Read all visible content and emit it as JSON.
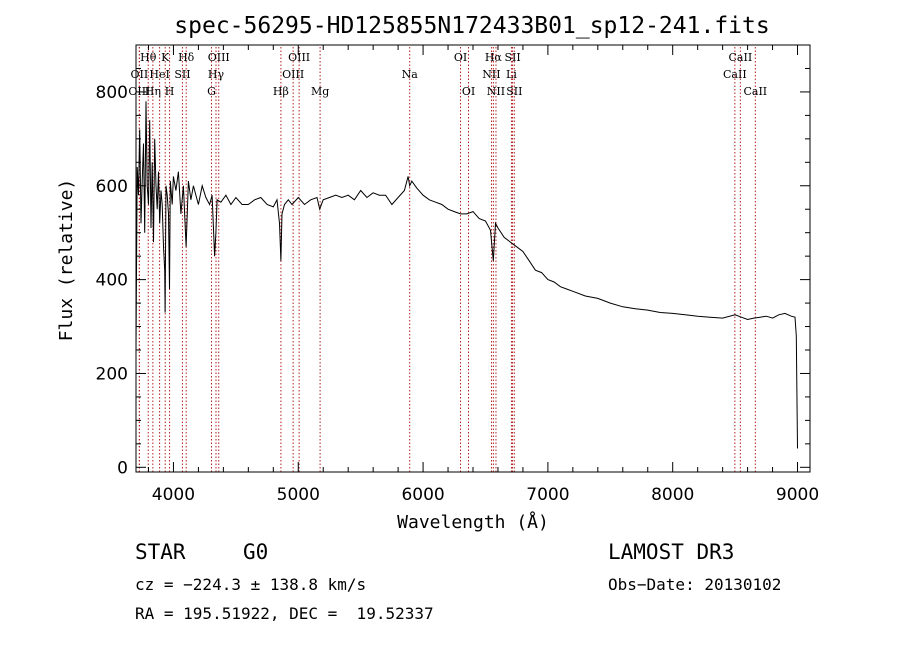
{
  "chart_data": {
    "type": "line",
    "title": "spec-56295-HD125855N172433B01_sp12-241.fits",
    "xlabel": "Wavelength (Å)",
    "ylabel": "Flux (relative)",
    "xlim": [
      3700,
      9100
    ],
    "ylim": [
      -10,
      900
    ],
    "xticks": [
      4000,
      5000,
      6000,
      7000,
      8000,
      9000
    ],
    "yticks": [
      0,
      200,
      400,
      600,
      800
    ],
    "x_minor_step": 200,
    "y_minor_step": 50,
    "grid": false,
    "series": [
      {
        "name": "spectrum",
        "x": [
          3700,
          3710,
          3720,
          3730,
          3740,
          3750,
          3760,
          3770,
          3780,
          3790,
          3800,
          3810,
          3820,
          3830,
          3840,
          3850,
          3860,
          3870,
          3880,
          3890,
          3900,
          3910,
          3920,
          3930,
          3933,
          3940,
          3950,
          3960,
          3968,
          3975,
          3990,
          4000,
          4020,
          4040,
          4060,
          4080,
          4101,
          4120,
          4140,
          4160,
          4180,
          4200,
          4230,
          4260,
          4290,
          4310,
          4330,
          4340,
          4350,
          4380,
          4420,
          4460,
          4500,
          4550,
          4600,
          4650,
          4700,
          4750,
          4800,
          4830,
          4850,
          4861,
          4870,
          4890,
          4920,
          4950,
          5000,
          5050,
          5100,
          5150,
          5172,
          5200,
          5250,
          5300,
          5350,
          5400,
          5450,
          5500,
          5550,
          5600,
          5650,
          5700,
          5750,
          5800,
          5850,
          5880,
          5893,
          5910,
          5950,
          6000,
          6050,
          6100,
          6150,
          6200,
          6250,
          6300,
          6350,
          6400,
          6450,
          6500,
          6540,
          6563,
          6580,
          6600,
          6650,
          6700,
          6750,
          6800,
          6850,
          6900,
          6950,
          7000,
          7050,
          7100,
          7150,
          7200,
          7300,
          7400,
          7500,
          7600,
          7700,
          7800,
          7900,
          8000,
          8100,
          8200,
          8300,
          8400,
          8500,
          8550,
          8600,
          8650,
          8700,
          8750,
          8800,
          8850,
          8900,
          8950,
          8980,
          8990,
          9000
        ],
        "values": [
          250,
          640,
          580,
          720,
          520,
          610,
          690,
          500,
          780,
          600,
          560,
          740,
          510,
          650,
          480,
          700,
          600,
          550,
          630,
          520,
          590,
          560,
          470,
          420,
          330,
          600,
          580,
          540,
          380,
          610,
          560,
          620,
          590,
          630,
          540,
          600,
          470,
          610,
          570,
          600,
          580,
          560,
          600,
          575,
          560,
          580,
          450,
          500,
          570,
          565,
          580,
          560,
          575,
          560,
          560,
          570,
          575,
          560,
          555,
          570,
          520,
          440,
          540,
          560,
          570,
          560,
          575,
          560,
          570,
          575,
          550,
          570,
          575,
          580,
          575,
          580,
          570,
          590,
          575,
          585,
          580,
          580,
          560,
          575,
          590,
          620,
          600,
          610,
          595,
          580,
          570,
          565,
          560,
          550,
          545,
          540,
          540,
          545,
          530,
          525,
          505,
          440,
          520,
          510,
          490,
          480,
          470,
          460,
          440,
          420,
          415,
          400,
          395,
          385,
          380,
          375,
          365,
          360,
          350,
          342,
          338,
          335,
          330,
          328,
          325,
          322,
          320,
          318,
          325,
          320,
          315,
          318,
          320,
          322,
          318,
          325,
          328,
          322,
          320,
          280,
          40
        ]
      }
    ],
    "spectral_lines": [
      {
        "label": "Hθ",
        "x": 3798,
        "row": 0
      },
      {
        "label": "K",
        "x": 3934,
        "row": 0
      },
      {
        "label": "Hδ",
        "x": 4102,
        "row": 0
      },
      {
        "label": "OIII",
        "x": 4363,
        "row": 0
      },
      {
        "label": "OIII",
        "x": 5007,
        "row": 0
      },
      {
        "label": "OI",
        "x": 6300,
        "row": 0
      },
      {
        "label": "Hα",
        "x": 6563,
        "row": 0
      },
      {
        "label": "SII",
        "x": 6717,
        "row": 0
      },
      {
        "label": "CaII",
        "x": 8542,
        "row": 0
      },
      {
        "label": "OII",
        "x": 3727,
        "row": 1
      },
      {
        "label": "HeI",
        "x": 3889,
        "row": 1
      },
      {
        "label": "SII",
        "x": 4072,
        "row": 1
      },
      {
        "label": "Hγ",
        "x": 4341,
        "row": 1
      },
      {
        "label": "OIII",
        "x": 4959,
        "row": 1
      },
      {
        "label": "Na",
        "x": 5893,
        "row": 1
      },
      {
        "label": "NII",
        "x": 6548,
        "row": 1
      },
      {
        "label": "Li",
        "x": 6708,
        "row": 1
      },
      {
        "label": "CaII",
        "x": 8498,
        "row": 1
      },
      {
        "label": "OIII",
        "x": 3727,
        "row": 2
      },
      {
        "label": "Hη",
        "x": 3835,
        "row": 2
      },
      {
        "label": "H",
        "x": 3969,
        "row": 2
      },
      {
        "label": "G",
        "x": 4305,
        "row": 2
      },
      {
        "label": "Hβ",
        "x": 4861,
        "row": 2
      },
      {
        "label": "Mg",
        "x": 5175,
        "row": 2
      },
      {
        "label": "OI",
        "x": 6364,
        "row": 2
      },
      {
        "label": "NII",
        "x": 6584,
        "row": 2
      },
      {
        "label": "SII",
        "x": 6731,
        "row": 2
      },
      {
        "label": "CaII",
        "x": 8662,
        "row": 2
      }
    ]
  },
  "info": {
    "object_type": "STAR",
    "subclass": "G0",
    "survey": "LAMOST DR3",
    "redshift": "cz = −224.3 ± 138.8 km/s",
    "obs_date": "Obs−Date: 20130102",
    "coords": "RA = 195.51922, DEC =  19.52337"
  },
  "colors": {
    "line_marker": "#b22222",
    "spectrum": "#000000",
    "axes": "#000000"
  }
}
